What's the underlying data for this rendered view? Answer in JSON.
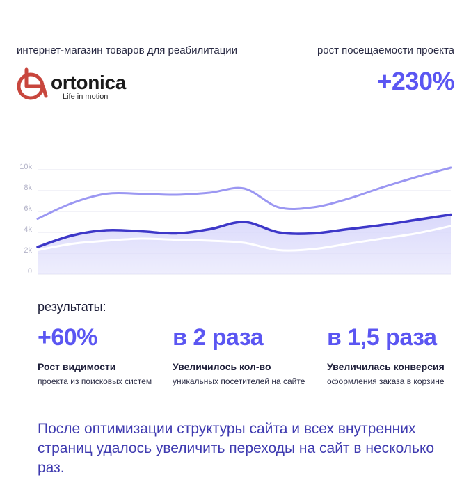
{
  "header": {
    "left_subtitle": "интернет-магазин товаров для реабилитации",
    "right_subtitle": "рост посещаемости проекта",
    "growth_value": "+230%"
  },
  "logo": {
    "name": "ortonica",
    "tagline": "Life in motion",
    "icon": "wheelchair-icon",
    "color": "#c8463d"
  },
  "chart_data": {
    "type": "area",
    "y_ticks": [
      "0",
      "2k",
      "4k",
      "6k",
      "8k",
      "10k"
    ],
    "ylim": [
      0,
      10000
    ],
    "grid": true,
    "legend": "none",
    "x": [
      0,
      1,
      2,
      3,
      4,
      5,
      6,
      7,
      8,
      9,
      10,
      11,
      12
    ],
    "series": [
      {
        "values": [
          5300,
          6800,
          7700,
          7700,
          7600,
          7800,
          8200,
          6400,
          6400,
          7200,
          8300,
          9300,
          10200
        ],
        "color": "#9b97f2",
        "style": "line"
      },
      {
        "values": [
          2600,
          3700,
          4200,
          4100,
          3900,
          4300,
          5000,
          4000,
          3900,
          4300,
          4700,
          5200,
          5700
        ],
        "color": "#3d37c8",
        "style": "area"
      },
      {
        "values": [
          2300,
          2900,
          3200,
          3400,
          3300,
          3200,
          3000,
          2300,
          2400,
          2900,
          3400,
          3900,
          4600
        ],
        "color": "#ffffff",
        "style": "line"
      }
    ]
  },
  "results": {
    "heading": "результаты:",
    "items": [
      {
        "value": "+60%",
        "title": "Рост видимости",
        "desc": "проекта из поисковых систем"
      },
      {
        "value": "в 2 раза",
        "title": "Увеличилось кол-во",
        "desc": "уникальных посетителей на сайте"
      },
      {
        "value": "в 1,5 раза",
        "title": "Увеличилась конверсия",
        "desc": "оформления заказа в корзине"
      }
    ]
  },
  "summary": "После оптимизации структуры сайта и всех внутренних страниц удалось увеличить переходы на сайт в несколько раз.",
  "colors": {
    "accent": "#5b56f2",
    "dark_line": "#3d37c8",
    "light_line": "#9b97f2",
    "fill": "#dad9fb"
  }
}
